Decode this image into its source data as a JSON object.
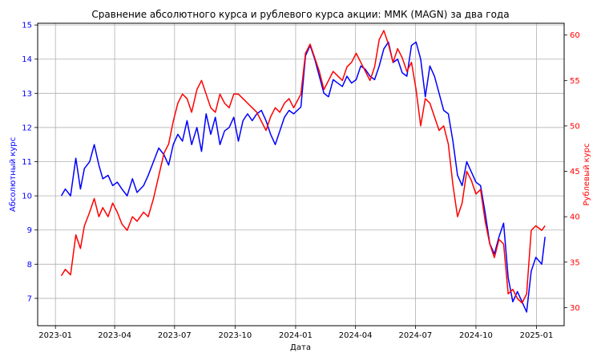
{
  "chart_data": {
    "type": "line",
    "title": "Сравнение абсолютного курса и рублевого курса акции: ММК (MAGN) за два года",
    "xlabel": "Дата",
    "ylabel_left": "Абсолютный курс",
    "ylabel_right": "Рублевый курс",
    "grid": true,
    "xlim": [
      "2022-12-05",
      "2025-02-12"
    ],
    "ylim_left": [
      6.2,
      15.05
    ],
    "ylim_right": [
      28.0,
      61.3
    ],
    "x_ticks": [
      "2023-01",
      "2023-04",
      "2023-07",
      "2023-10",
      "2024-01",
      "2024-04",
      "2024-07",
      "2024-10",
      "2025-01"
    ],
    "x_tick_dates": [
      "2023-01-01",
      "2023-04-01",
      "2023-07-01",
      "2023-10-01",
      "2024-01-01",
      "2024-04-01",
      "2024-07-01",
      "2024-10-01",
      "2025-01-01"
    ],
    "y_ticks_left": [
      "7",
      "8",
      "9",
      "10",
      "11",
      "12",
      "13",
      "14",
      "15"
    ],
    "y_ticks_right": [
      "30",
      "35",
      "40",
      "45",
      "50",
      "55",
      "60"
    ],
    "colors": {
      "left": "#0000ff",
      "right": "#ff0000"
    },
    "series": [
      {
        "axis": "left",
        "color": "#0000ff",
        "x": [
          "2023-01-10",
          "2023-01-16",
          "2023-01-24",
          "2023-02-01",
          "2023-02-08",
          "2023-02-14",
          "2023-02-22",
          "2023-03-01",
          "2023-03-08",
          "2023-03-14",
          "2023-03-22",
          "2023-03-29",
          "2023-04-05",
          "2023-04-12",
          "2023-04-20",
          "2023-04-28",
          "2023-05-05",
          "2023-05-15",
          "2023-05-22",
          "2023-05-30",
          "2023-06-07",
          "2023-06-15",
          "2023-06-22",
          "2023-06-29",
          "2023-07-06",
          "2023-07-13",
          "2023-07-20",
          "2023-07-27",
          "2023-08-04",
          "2023-08-11",
          "2023-08-18",
          "2023-08-25",
          "2023-09-01",
          "2023-09-08",
          "2023-09-15",
          "2023-09-22",
          "2023-09-29",
          "2023-10-06",
          "2023-10-13",
          "2023-10-20",
          "2023-10-27",
          "2023-11-03",
          "2023-11-10",
          "2023-11-17",
          "2023-11-24",
          "2023-12-01",
          "2023-12-08",
          "2023-12-15",
          "2023-12-22",
          "2023-12-29",
          "2024-01-09",
          "2024-01-16",
          "2024-01-23",
          "2024-01-30",
          "2024-02-06",
          "2024-02-13",
          "2024-02-20",
          "2024-02-27",
          "2024-03-05",
          "2024-03-12",
          "2024-03-19",
          "2024-03-26",
          "2024-04-02",
          "2024-04-09",
          "2024-04-16",
          "2024-04-23",
          "2024-04-30",
          "2024-05-07",
          "2024-05-14",
          "2024-05-21",
          "2024-05-28",
          "2024-06-04",
          "2024-06-11",
          "2024-06-18",
          "2024-06-25",
          "2024-07-02",
          "2024-07-09",
          "2024-07-16",
          "2024-07-23",
          "2024-07-30",
          "2024-08-06",
          "2024-08-13",
          "2024-08-20",
          "2024-08-27",
          "2024-09-03",
          "2024-09-10",
          "2024-09-17",
          "2024-09-24",
          "2024-10-01",
          "2024-10-08",
          "2024-10-15",
          "2024-10-22",
          "2024-10-29",
          "2024-11-05",
          "2024-11-12",
          "2024-11-19",
          "2024-11-26",
          "2024-12-03",
          "2024-12-10",
          "2024-12-17",
          "2024-12-24",
          "2024-12-31",
          "2025-01-09",
          "2025-01-14"
        ],
        "values": [
          10.0,
          10.2,
          10.0,
          11.1,
          10.2,
          10.8,
          11.0,
          11.5,
          10.9,
          10.5,
          10.6,
          10.3,
          10.4,
          10.2,
          10.0,
          10.5,
          10.1,
          10.3,
          10.6,
          11.0,
          11.4,
          11.2,
          10.9,
          11.5,
          11.8,
          11.6,
          12.2,
          11.5,
          12.0,
          11.3,
          12.4,
          11.8,
          12.3,
          11.5,
          11.9,
          12.0,
          12.3,
          11.6,
          12.2,
          12.4,
          12.2,
          12.4,
          12.5,
          12.2,
          11.8,
          11.5,
          11.9,
          12.3,
          12.5,
          12.4,
          12.6,
          14.1,
          14.4,
          14.0,
          13.5,
          13.0,
          12.9,
          13.4,
          13.3,
          13.2,
          13.5,
          13.3,
          13.4,
          13.8,
          13.7,
          13.5,
          13.4,
          13.8,
          14.3,
          14.5,
          13.9,
          14.0,
          13.6,
          13.5,
          14.4,
          14.5,
          14.0,
          12.9,
          13.8,
          13.5,
          13.0,
          12.5,
          12.4,
          11.6,
          10.6,
          10.3,
          11.0,
          10.7,
          10.4,
          10.3,
          9.5,
          8.6,
          8.3,
          8.8,
          9.2,
          7.6,
          6.9,
          7.2,
          6.9,
          6.6,
          7.8,
          8.2,
          8.0,
          8.8
        ]
      },
      {
        "axis": "right",
        "color": "#ff0000",
        "x": [
          "2023-01-10",
          "2023-01-16",
          "2023-01-24",
          "2023-02-01",
          "2023-02-08",
          "2023-02-14",
          "2023-02-22",
          "2023-03-01",
          "2023-03-08",
          "2023-03-14",
          "2023-03-22",
          "2023-03-29",
          "2023-04-05",
          "2023-04-12",
          "2023-04-20",
          "2023-04-28",
          "2023-05-05",
          "2023-05-15",
          "2023-05-22",
          "2023-05-30",
          "2023-06-07",
          "2023-06-15",
          "2023-06-22",
          "2023-06-29",
          "2023-07-06",
          "2023-07-13",
          "2023-07-20",
          "2023-07-27",
          "2023-08-04",
          "2023-08-11",
          "2023-08-18",
          "2023-08-25",
          "2023-09-01",
          "2023-09-08",
          "2023-09-15",
          "2023-09-22",
          "2023-09-29",
          "2023-10-06",
          "2023-10-13",
          "2023-10-20",
          "2023-10-27",
          "2023-11-03",
          "2023-11-10",
          "2023-11-17",
          "2023-11-24",
          "2023-12-01",
          "2023-12-08",
          "2023-12-15",
          "2023-12-22",
          "2023-12-29",
          "2024-01-09",
          "2024-01-16",
          "2024-01-23",
          "2024-01-30",
          "2024-02-06",
          "2024-02-13",
          "2024-02-20",
          "2024-02-27",
          "2024-03-05",
          "2024-03-12",
          "2024-03-19",
          "2024-03-26",
          "2024-04-02",
          "2024-04-09",
          "2024-04-16",
          "2024-04-23",
          "2024-04-30",
          "2024-05-07",
          "2024-05-14",
          "2024-05-21",
          "2024-05-28",
          "2024-06-04",
          "2024-06-11",
          "2024-06-18",
          "2024-06-25",
          "2024-07-02",
          "2024-07-09",
          "2024-07-16",
          "2024-07-23",
          "2024-07-30",
          "2024-08-06",
          "2024-08-13",
          "2024-08-20",
          "2024-08-27",
          "2024-09-03",
          "2024-09-10",
          "2024-09-17",
          "2024-09-24",
          "2024-10-01",
          "2024-10-08",
          "2024-10-15",
          "2024-10-22",
          "2024-10-29",
          "2024-11-05",
          "2024-11-12",
          "2024-11-19",
          "2024-11-26",
          "2024-12-03",
          "2024-12-10",
          "2024-12-17",
          "2024-12-24",
          "2024-12-31",
          "2025-01-09",
          "2025-01-14"
        ],
        "values": [
          33.5,
          34.2,
          33.6,
          38.0,
          36.5,
          39.0,
          40.5,
          42.0,
          40.0,
          41.0,
          40.0,
          41.5,
          40.5,
          39.2,
          38.5,
          40.0,
          39.5,
          40.5,
          40.0,
          42.0,
          44.5,
          47.0,
          48.0,
          50.5,
          52.5,
          53.5,
          53.0,
          51.5,
          54.0,
          55.0,
          53.5,
          52.0,
          51.5,
          53.5,
          52.5,
          52.0,
          53.5,
          53.5,
          53.0,
          52.5,
          52.0,
          51.5,
          50.5,
          49.5,
          51.0,
          52.0,
          51.5,
          52.5,
          53.0,
          52.0,
          53.5,
          58.0,
          59.0,
          57.5,
          56.0,
          54.0,
          55.0,
          56.0,
          55.5,
          55.0,
          56.5,
          57.0,
          58.0,
          57.0,
          56.0,
          55.0,
          56.5,
          59.5,
          60.5,
          59.0,
          57.0,
          58.5,
          57.5,
          56.0,
          57.0,
          54.0,
          50.0,
          53.0,
          52.5,
          51.0,
          49.5,
          50.0,
          48.0,
          43.5,
          40.0,
          41.5,
          45.0,
          44.0,
          42.5,
          43.0,
          39.5,
          37.0,
          35.5,
          37.5,
          37.0,
          31.5,
          32.0,
          31.0,
          30.5,
          31.5,
          38.5,
          39.0,
          38.5,
          39.0
        ]
      }
    ]
  }
}
